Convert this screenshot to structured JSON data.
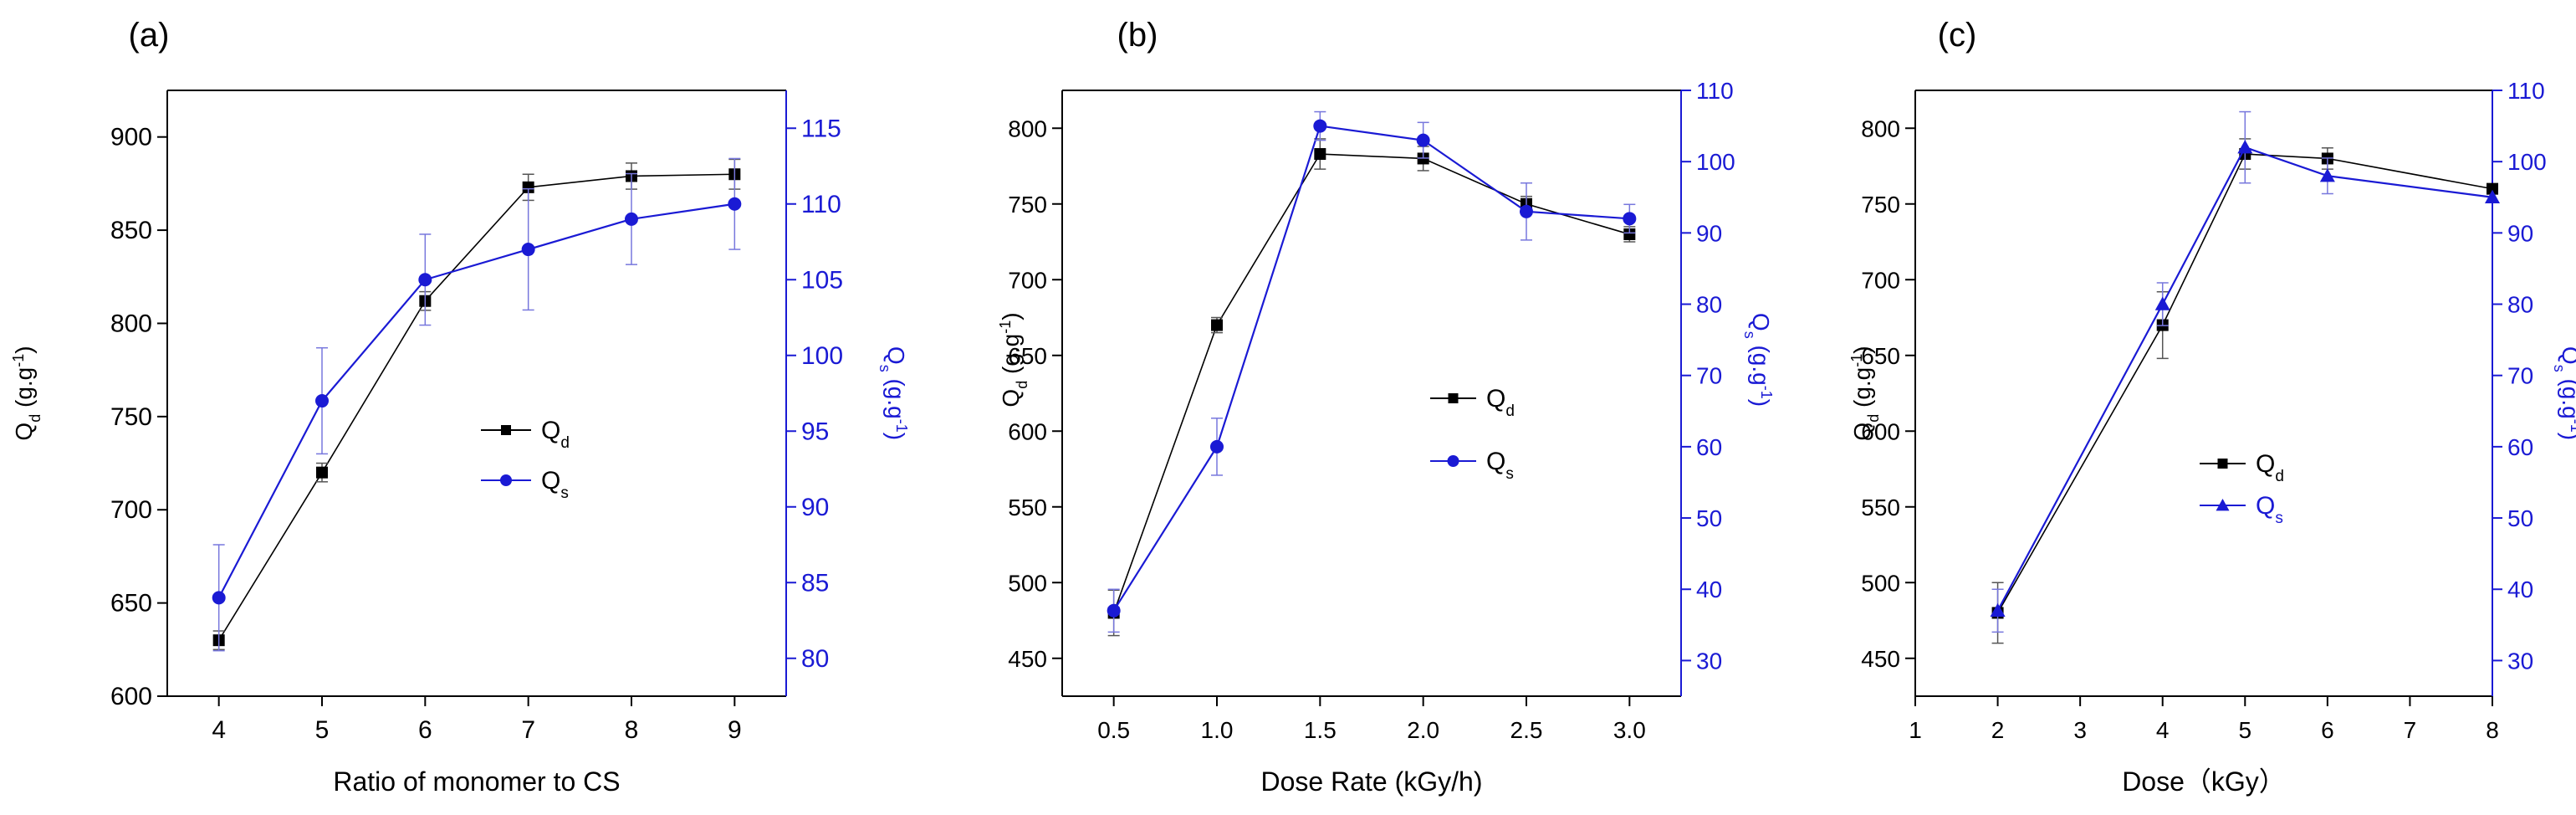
{
  "colors": {
    "qd": "#000000",
    "qs": "#1a1ad4",
    "axis": "#000000",
    "right_axis": "#1a1ad4"
  },
  "chart_data": [
    {
      "panel": "(a)",
      "type": "line",
      "xlabel": "Ratio of monomer to CS",
      "ylabel_left": "Q",
      "ylabel_left_sub": "d",
      "ylabel_left_unit": " (g.g",
      "ylabel_left_sup": "-1",
      "ylabel_left_close": ")",
      "ylabel_right": "Q",
      "ylabel_right_sub": "s",
      "ylabel_right_unit": " (g.g",
      "ylabel_right_sup": "-1",
      "ylabel_right_close": ")",
      "xlim": [
        3.5,
        9.5
      ],
      "xticks": [
        4,
        5,
        6,
        7,
        8,
        9
      ],
      "xtick_labels": [
        "4",
        "5",
        "6",
        "7",
        "8",
        "9"
      ],
      "ylim_left": [
        600,
        925
      ],
      "yticks_left": [
        600,
        650,
        700,
        750,
        800,
        850,
        900
      ],
      "ylim_right": [
        77.5,
        117.5
      ],
      "yticks_right": [
        80,
        85,
        90,
        95,
        100,
        105,
        110,
        115
      ],
      "legend": [
        {
          "base": "Q",
          "sub": "d",
          "marker": "square"
        },
        {
          "base": "Q",
          "sub": "s",
          "marker": "circle"
        }
      ],
      "series": [
        {
          "name": "Qd",
          "axis": "left",
          "marker": "square",
          "x": [
            4,
            5,
            6,
            7,
            8,
            9
          ],
          "y": [
            630,
            720,
            812,
            873,
            879,
            880
          ],
          "err": [
            5,
            5,
            5,
            7,
            7,
            8
          ]
        },
        {
          "name": "Qs",
          "axis": "right",
          "marker": "circle",
          "x": [
            4,
            5,
            6,
            7,
            8,
            9
          ],
          "y": [
            84,
            97,
            105,
            107,
            109,
            110
          ],
          "err": [
            3.5,
            3.5,
            3.0,
            4.0,
            3.0,
            3.0
          ]
        }
      ]
    },
    {
      "panel": "(b)",
      "type": "line",
      "xlabel": "Dose Rate (kGy/h)",
      "ylabel_left": "Q",
      "ylabel_left_sub": "d",
      "ylabel_left_unit": " (g.g",
      "ylabel_left_sup": "-1",
      "ylabel_left_close": ")",
      "ylabel_right": "Q",
      "ylabel_right_sub": "s",
      "ylabel_right_unit": " (g.g",
      "ylabel_right_sup": "-1",
      "ylabel_right_close": ")",
      "xlim": [
        0.25,
        3.25
      ],
      "xticks": [
        0.5,
        1.0,
        1.5,
        2.0,
        2.5,
        3.0
      ],
      "xtick_labels": [
        "0.5",
        "1.0",
        "1.5",
        "2.0",
        "2.5",
        "3.0"
      ],
      "ylim_left": [
        425,
        825
      ],
      "yticks_left": [
        450,
        500,
        550,
        600,
        650,
        700,
        750,
        800
      ],
      "ylim_right": [
        25,
        110
      ],
      "yticks_right": [
        30,
        40,
        50,
        60,
        70,
        80,
        90,
        100,
        110
      ],
      "legend": [
        {
          "base": "Q",
          "sub": "d",
          "marker": "square"
        },
        {
          "base": "Q",
          "sub": "s",
          "marker": "circle"
        }
      ],
      "series": [
        {
          "name": "Qd",
          "axis": "left",
          "marker": "square",
          "x": [
            0.5,
            1.0,
            1.5,
            2.0,
            2.5,
            3.0
          ],
          "y": [
            480,
            670,
            783,
            780,
            750,
            730
          ],
          "err": [
            15,
            5,
            10,
            8,
            5,
            5
          ]
        },
        {
          "name": "Qs",
          "axis": "right",
          "marker": "circle",
          "x": [
            0.5,
            1.0,
            1.5,
            2.0,
            2.5,
            3.0
          ],
          "y": [
            37,
            60,
            105,
            103,
            93,
            92
          ],
          "err": [
            3,
            4,
            2,
            2.5,
            4,
            2
          ]
        }
      ]
    },
    {
      "panel": "(c)",
      "type": "line",
      "xlabel": "Dose（kGy）",
      "ylabel_left": "Q",
      "ylabel_left_sub": "d",
      "ylabel_left_unit": " (g.g",
      "ylabel_left_sup": "-1",
      "ylabel_left_close": ")",
      "ylabel_right": "Q",
      "ylabel_right_sub": "s",
      "ylabel_right_unit": " (g.g",
      "ylabel_right_sup": "-1",
      "ylabel_right_close": ")",
      "xlim": [
        1,
        8
      ],
      "xticks": [
        1,
        2,
        3,
        4,
        5,
        6,
        7,
        8
      ],
      "xtick_labels": [
        "1",
        "2",
        "3",
        "4",
        "5",
        "6",
        "7",
        "8"
      ],
      "ylim_left": [
        425,
        825
      ],
      "yticks_left": [
        450,
        500,
        550,
        600,
        650,
        700,
        750,
        800
      ],
      "ylim_right": [
        25,
        110
      ],
      "yticks_right": [
        30,
        40,
        50,
        60,
        70,
        80,
        90,
        100,
        110
      ],
      "legend": [
        {
          "base": "Q",
          "sub": "d",
          "marker": "square"
        },
        {
          "base": "Q",
          "sub": "s",
          "marker": "triangle"
        }
      ],
      "series": [
        {
          "name": "Qd",
          "axis": "left",
          "marker": "square",
          "x": [
            2,
            4,
            5,
            6,
            8
          ],
          "y": [
            480,
            670,
            783,
            780,
            760
          ],
          "err": [
            20,
            22,
            10,
            7,
            0
          ]
        },
        {
          "name": "Qs",
          "axis": "right",
          "marker": "triangle",
          "x": [
            2,
            4,
            5,
            6,
            8
          ],
          "y": [
            37,
            80,
            102,
            98,
            95
          ],
          "err": [
            3,
            3,
            5,
            2.5,
            0
          ]
        }
      ]
    }
  ]
}
